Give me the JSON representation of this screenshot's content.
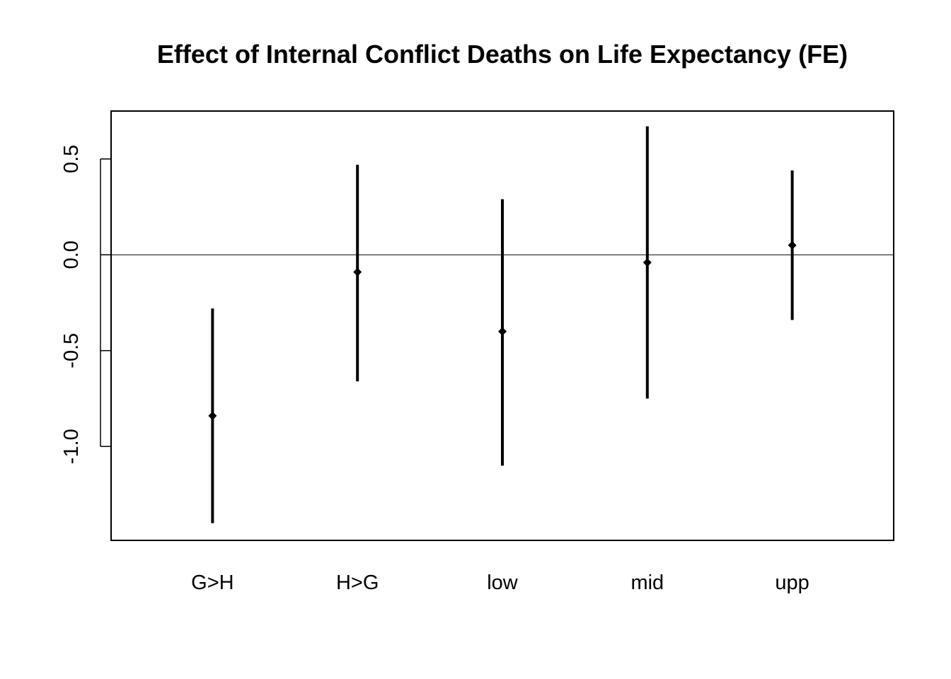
{
  "chart_data": {
    "type": "errorbar",
    "title": "Effect of Internal Conflict Deaths on Life Expectancy (FE)",
    "xlabel": "",
    "ylabel": "",
    "categories": [
      "G>H",
      "H>G",
      "low",
      "mid",
      "upp"
    ],
    "estimates": [
      -0.84,
      -0.09,
      -0.4,
      -0.04,
      0.05
    ],
    "lower": [
      -1.4,
      -0.66,
      -1.1,
      -0.75,
      -0.34
    ],
    "upper": [
      -0.28,
      0.47,
      0.29,
      0.67,
      0.44
    ],
    "yticks": [
      "-1.0",
      "-0.5",
      "0.0",
      "0.5"
    ],
    "ylim": [
      -1.49,
      0.75
    ],
    "reference_line": 0,
    "grid": false,
    "legend": "none"
  }
}
